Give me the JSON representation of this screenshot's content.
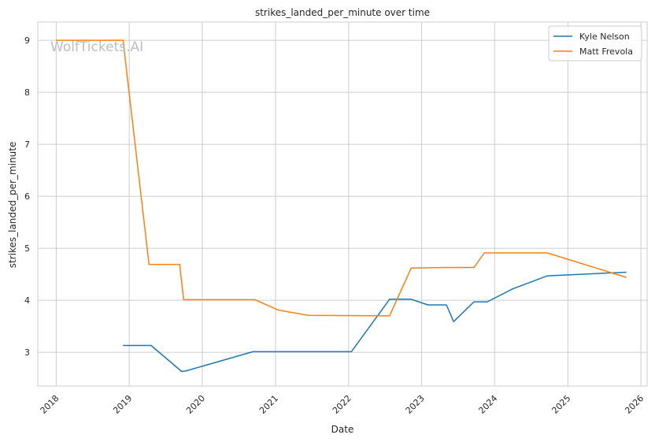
{
  "watermark": "WolfTickets.AI",
  "chart_data": {
    "type": "line",
    "title": "strikes_landed_per_minute over time",
    "xlabel": "Date",
    "ylabel": "strikes_landed_per_minute",
    "x_ticks": [
      "2018",
      "2019",
      "2020",
      "2021",
      "2022",
      "2023",
      "2024",
      "2025",
      "2026"
    ],
    "y_ticks": [
      "3",
      "4",
      "5",
      "6",
      "7",
      "8",
      "9"
    ],
    "xlim": [
      "2017-10-01",
      "2026-02-01"
    ],
    "ylim": [
      2.35,
      9.35
    ],
    "grid": true,
    "legend_position": "top-right",
    "series": [
      {
        "name": "Kyle Nelson",
        "color": "#1f77b4",
        "points": [
          [
            "2018-12-01",
            3.13
          ],
          [
            "2019-04-20",
            3.13
          ],
          [
            "2019-09-20",
            2.63
          ],
          [
            "2019-10-10",
            2.64
          ],
          [
            "2020-09-10",
            3.01
          ],
          [
            "2022-01-15",
            3.01
          ],
          [
            "2022-07-25",
            4.02
          ],
          [
            "2022-11-10",
            4.02
          ],
          [
            "2023-02-01",
            3.91
          ],
          [
            "2023-05-05",
            3.91
          ],
          [
            "2023-06-10",
            3.59
          ],
          [
            "2023-09-20",
            3.97
          ],
          [
            "2023-11-25",
            3.97
          ],
          [
            "2024-04-01",
            4.22
          ],
          [
            "2024-09-20",
            4.47
          ],
          [
            "2025-10-20",
            4.54
          ]
        ]
      },
      {
        "name": "Matt Frevola",
        "color": "#ff7f0e",
        "points": [
          [
            "2018-01-01",
            9.0
          ],
          [
            "2018-12-01",
            9.0
          ],
          [
            "2019-04-10",
            4.69
          ],
          [
            "2019-09-10",
            4.69
          ],
          [
            "2019-09-30",
            4.01
          ],
          [
            "2020-09-20",
            4.01
          ],
          [
            "2021-01-15",
            3.81
          ],
          [
            "2021-06-15",
            3.71
          ],
          [
            "2022-07-25",
            3.7
          ],
          [
            "2022-11-10",
            4.62
          ],
          [
            "2023-05-01",
            4.63
          ],
          [
            "2023-09-20",
            4.63
          ],
          [
            "2023-11-10",
            4.91
          ],
          [
            "2024-09-20",
            4.91
          ],
          [
            "2025-10-20",
            4.44
          ]
        ]
      }
    ]
  }
}
